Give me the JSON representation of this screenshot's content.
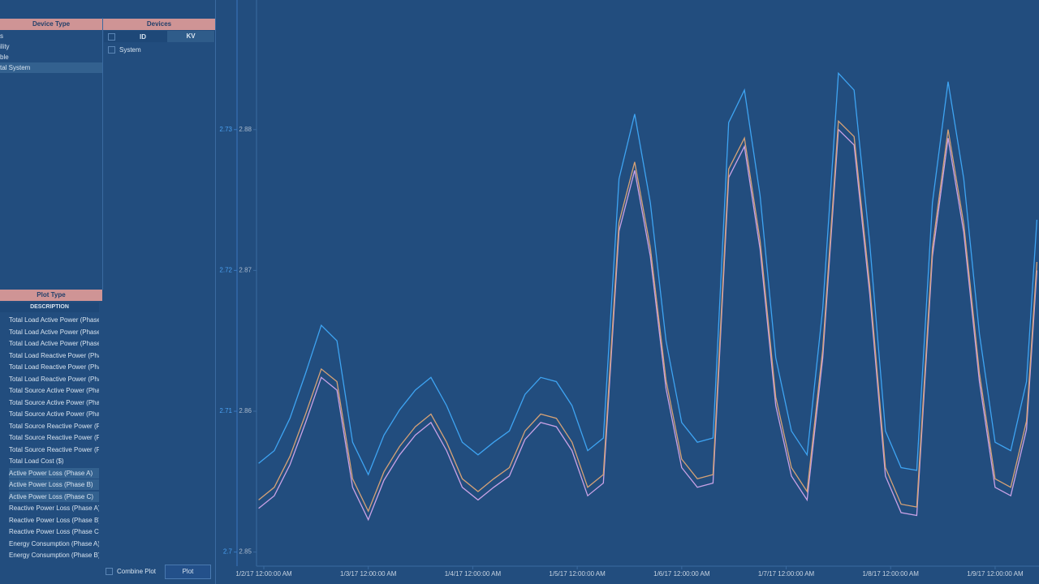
{
  "device_panel": {
    "header": "Device Type",
    "items": [
      "s",
      "ility",
      "ble",
      "tal System"
    ]
  },
  "devices_panel": {
    "header": "Devices",
    "columns": [
      "ID",
      "KV"
    ],
    "rows": [
      [
        "System"
      ]
    ]
  },
  "plot_type_panel": {
    "header": "Plot Type",
    "column": "DESCRIPTION",
    "items": [
      "Total Load Active Power (Phase",
      "Total Load Active Power (Phase",
      "Total Load Active Power (Phase",
      "Total Load Reactive Power (Pha",
      "Total Load Reactive Power (Pha",
      "Total Load Reactive Power (Pha",
      "Total Source Active Power (Pha",
      "Total Source Active Power (Pha",
      "Total Source Active Power (Pha",
      "Total Source Reactive Power (Pl",
      "Total Source Reactive Power (Pl",
      "Total Source Reactive Power (Pl",
      "Total Load Cost ($)",
      "Active Power Loss (Phase A)",
      "Active Power Loss (Phase B)",
      "Active Power Loss (Phase C)",
      "Reactive Power Loss (Phase A)",
      "Reactive Power Loss (Phase B)",
      "Reactive Power Loss (Phase C)",
      "Energy Consumption (Phase A)",
      "Energy Consumption (Phase B)"
    ]
  },
  "controls": {
    "combine_plot": "Combine Plot",
    "plot_button": "Plot"
  },
  "chart_data": {
    "type": "line",
    "x": [
      -0.05,
      0.1,
      0.25,
      0.4,
      0.55,
      0.7,
      0.85,
      1.0,
      1.15,
      1.3,
      1.45,
      1.6,
      1.75,
      1.9,
      2.05,
      2.2,
      2.35,
      2.5,
      2.65,
      2.8,
      2.95,
      3.1,
      3.25,
      3.4,
      3.55,
      3.7,
      3.85,
      4.0,
      4.15,
      4.3,
      4.45,
      4.6,
      4.75,
      4.9,
      5.05,
      5.2,
      5.35,
      5.5,
      5.65,
      5.8,
      5.95,
      6.1,
      6.25,
      6.4,
      6.55,
      6.7,
      6.85,
      7.0,
      7.15,
      7.3,
      7.4
    ],
    "series": [
      {
        "color": "#3ea4f2",
        "values": [
          2.7063,
          2.7072,
          2.7095,
          2.7127,
          2.7161,
          2.715,
          2.7078,
          2.7055,
          2.7083,
          2.7101,
          2.7115,
          2.7124,
          2.7104,
          2.7078,
          2.7069,
          2.7078,
          2.7086,
          2.7112,
          2.7124,
          2.7121,
          2.7104,
          2.7072,
          2.7081,
          2.7265,
          2.7311,
          2.7248,
          2.715,
          2.7092,
          2.7078,
          2.7081,
          2.7305,
          2.7328,
          2.7253,
          2.7138,
          2.7086,
          2.7069,
          2.7173,
          2.734,
          2.7328,
          2.7219,
          2.7086,
          2.706,
          2.7058,
          2.7248,
          2.7334,
          2.7265,
          2.7155,
          2.7078,
          2.7072,
          2.7121,
          2.7236
        ]
      },
      {
        "color": "#c9a2e6",
        "values": [
          2.7031,
          2.704,
          2.7062,
          2.7092,
          2.7124,
          2.7115,
          2.7046,
          2.7023,
          2.7051,
          2.7069,
          2.7083,
          2.7092,
          2.7072,
          2.7046,
          2.7037,
          2.7046,
          2.7054,
          2.708,
          2.7092,
          2.7089,
          2.7072,
          2.704,
          2.7049,
          2.7228,
          2.7271,
          2.721,
          2.7116,
          2.706,
          2.7046,
          2.7049,
          2.7266,
          2.7288,
          2.7215,
          2.7104,
          2.7054,
          2.7037,
          2.7138,
          2.73,
          2.7289,
          2.7183,
          2.7054,
          2.7028,
          2.7026,
          2.721,
          2.7294,
          2.7227,
          2.7121,
          2.7046,
          2.704,
          2.7087,
          2.72
        ]
      },
      {
        "color": "#d6a276",
        "values": [
          2.7037,
          2.7046,
          2.7068,
          2.7098,
          2.713,
          2.7121,
          2.7052,
          2.7029,
          2.7057,
          2.7075,
          2.7089,
          2.7098,
          2.7078,
          2.7052,
          2.7043,
          2.7052,
          2.706,
          2.7086,
          2.7098,
          2.7095,
          2.7078,
          2.7046,
          2.7055,
          2.7234,
          2.7277,
          2.7216,
          2.7122,
          2.7066,
          2.7052,
          2.7055,
          2.7272,
          2.7294,
          2.7221,
          2.711,
          2.706,
          2.7043,
          2.7144,
          2.7306,
          2.7295,
          2.7189,
          2.706,
          2.7034,
          2.7032,
          2.7216,
          2.73,
          2.7233,
          2.7127,
          2.7052,
          2.7046,
          2.7093,
          2.7206
        ]
      }
    ],
    "xlim": [
      -0.07,
      7.42
    ],
    "xticks": [
      {
        "value": 0,
        "label": "1/2/17 12:00:00 AM"
      },
      {
        "value": 1,
        "label": "1/3/17 12:00:00 AM"
      },
      {
        "value": 2,
        "label": "1/4/17 12:00:00 AM"
      },
      {
        "value": 3,
        "label": "1/5/17 12:00:00 AM"
      },
      {
        "value": 4,
        "label": "1/6/17 12:00:00 AM"
      },
      {
        "value": 5,
        "label": "1/7/17 12:00:00 AM"
      },
      {
        "value": 6,
        "label": "1/8/17 12:00:00 AM"
      },
      {
        "value": 7,
        "label": "1/9/17 12:00:00 AM"
      }
    ],
    "ylim": [
      2.699,
      2.7392
    ],
    "yticks": [
      2.7,
      2.71,
      2.72,
      2.73
    ],
    "y2lim": [
      2.849,
      2.8892
    ],
    "y2ticks": [
      2.85,
      2.86,
      2.87,
      2.88
    ]
  }
}
